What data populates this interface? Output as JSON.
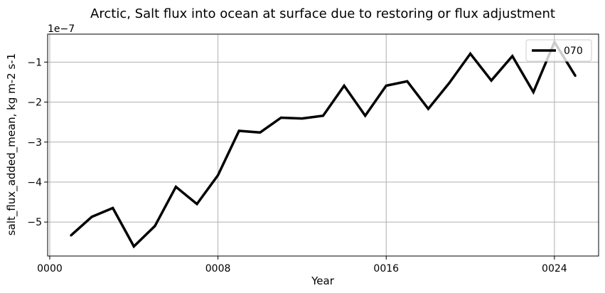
{
  "chart_data": {
    "type": "line",
    "title": "Arctic, Salt flux into ocean at surface due to restoring or flux adjustment",
    "xlabel": "Year",
    "ylabel": "salt_flux_added_mean, kg m-2 s-1",
    "y_offset_label": "1e−7",
    "y_scale": 1e-07,
    "xlim": [
      -0.1,
      26.1
    ],
    "ylim": [
      -5.85,
      -0.3
    ],
    "x_ticks": [
      {
        "value": 0,
        "label": "0000"
      },
      {
        "value": 8,
        "label": "0008"
      },
      {
        "value": 16,
        "label": "0016"
      },
      {
        "value": 24,
        "label": "0024"
      }
    ],
    "y_ticks": [
      {
        "value": -5,
        "label": "−5"
      },
      {
        "value": -4,
        "label": "−4"
      },
      {
        "value": -3,
        "label": "−3"
      },
      {
        "value": -2,
        "label": "−2"
      },
      {
        "value": -1,
        "label": "−1"
      }
    ],
    "grid": true,
    "legend_position": "top-right",
    "series": [
      {
        "name": "070",
        "color": "#000000",
        "x": [
          1,
          2,
          3,
          4,
          5,
          6,
          7,
          8,
          9,
          10,
          11,
          12,
          13,
          14,
          15,
          16,
          17,
          18,
          19,
          20,
          21,
          22,
          23,
          24,
          25
        ],
        "y": [
          -5.34,
          -4.87,
          -4.65,
          -5.61,
          -5.1,
          -4.12,
          -4.55,
          -3.83,
          -2.72,
          -2.76,
          -2.39,
          -2.41,
          -2.34,
          -1.59,
          -2.34,
          -1.59,
          -1.48,
          -2.17,
          -1.52,
          -0.79,
          -1.46,
          -0.85,
          -1.75,
          -0.5,
          -1.35
        ]
      }
    ]
  }
}
